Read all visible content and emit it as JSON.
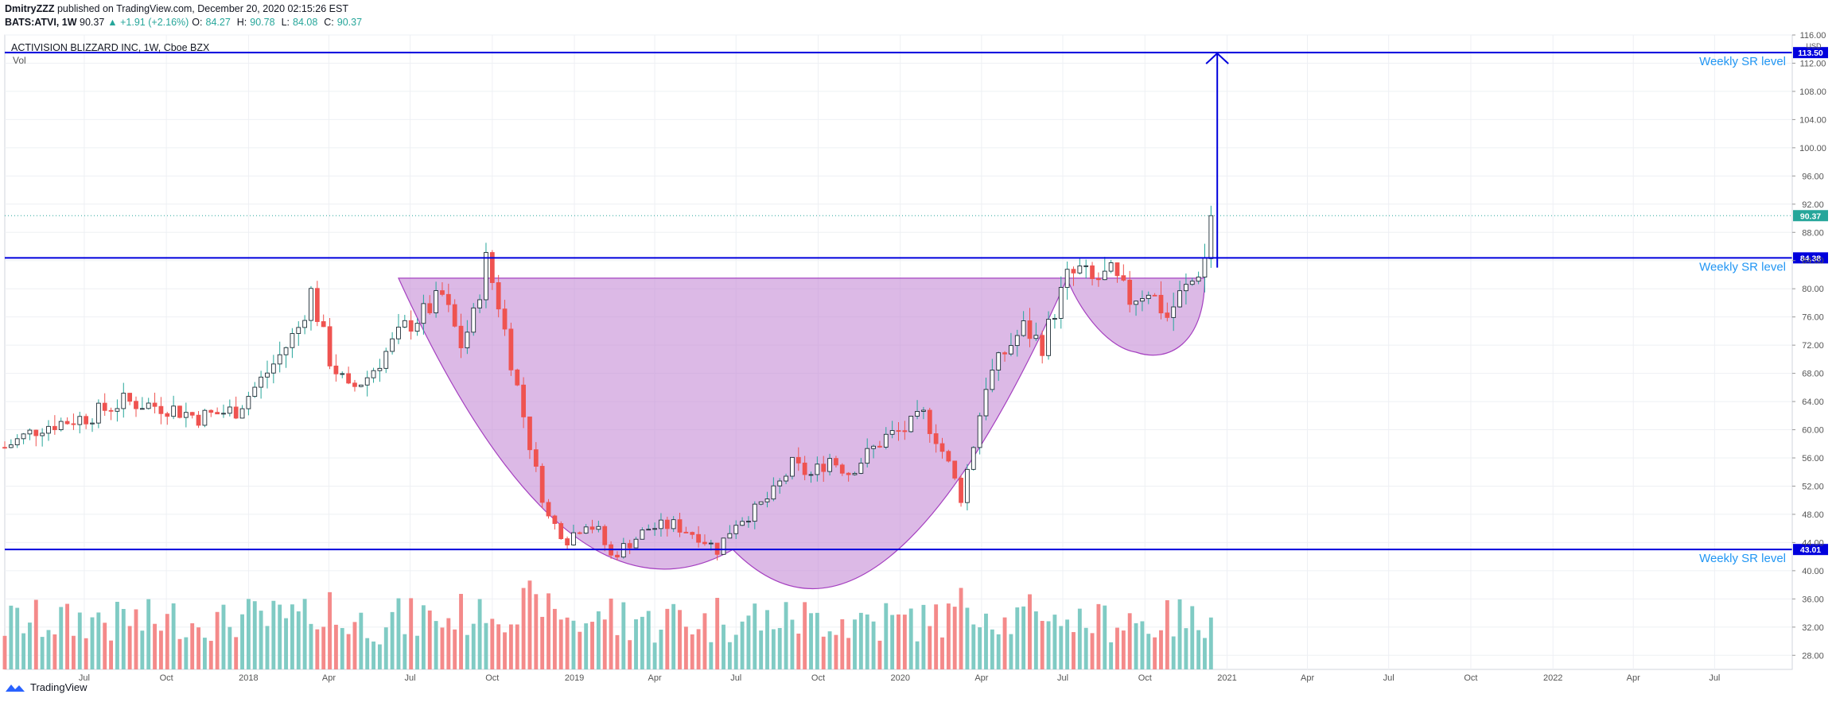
{
  "header": {
    "author": "DmitryZZZ",
    "published_text": "published on TradingView.com, December 20, 2020 02:15:26 EST",
    "symbol": "BATS:ATVI, 1W",
    "last": "90.37",
    "change": "▲ +1.91 (+2.16%)",
    "open_label": "O:",
    "open": "84.27",
    "high_label": "H:",
    "high": "90.78",
    "low_label": "L:",
    "low": "84.08",
    "close_label": "C:",
    "close": "90.37"
  },
  "pane": {
    "title": "ACTIVISION BLIZZARD INC, 1W, Cboe BZX",
    "vol_label": "Vol",
    "currency": "USD"
  },
  "footer": {
    "brand": "TradingView"
  },
  "colors": {
    "up": "#26a69a",
    "down": "#ef5350",
    "vol_up": "#80cbc4",
    "vol_down": "#f48a8a",
    "sr_line": "#0000dd",
    "pattern_fill": "#c48bd6",
    "pattern_stroke": "#a540c0",
    "label_blue": "#2196f3",
    "grid": "#eef0f4"
  },
  "chart_data": {
    "type": "candlestick",
    "title": "ACTIVISION BLIZZARD INC, 1W, Cboe BZX",
    "interval": "1W",
    "y_axis": {
      "min": 26,
      "max": 116,
      "ticks": [
        28,
        32,
        36,
        40,
        44,
        48,
        52,
        56,
        60,
        64,
        68,
        72,
        76,
        80,
        84,
        88,
        92,
        96,
        100,
        104,
        108,
        112,
        116
      ],
      "tick_format": "2dp",
      "unit": "USD"
    },
    "x_axis": {
      "start": "2017-04-03",
      "end": "2022-09-26",
      "ticks": [
        {
          "date": "2017-07-01",
          "label": "Jul"
        },
        {
          "date": "2017-10-01",
          "label": "Oct"
        },
        {
          "date": "2018-01-01",
          "label": "2018"
        },
        {
          "date": "2018-04-01",
          "label": "Apr"
        },
        {
          "date": "2018-07-01",
          "label": "Jul"
        },
        {
          "date": "2018-10-01",
          "label": "Oct"
        },
        {
          "date": "2019-01-01",
          "label": "2019"
        },
        {
          "date": "2019-04-01",
          "label": "Apr"
        },
        {
          "date": "2019-07-01",
          "label": "Jul"
        },
        {
          "date": "2019-10-01",
          "label": "Oct"
        },
        {
          "date": "2020-01-01",
          "label": "2020"
        },
        {
          "date": "2020-04-01",
          "label": "Apr"
        },
        {
          "date": "2020-07-01",
          "label": "Jul"
        },
        {
          "date": "2020-10-01",
          "label": "Oct"
        },
        {
          "date": "2021-01-01",
          "label": "2021"
        },
        {
          "date": "2021-04-01",
          "label": "Apr"
        },
        {
          "date": "2021-07-01",
          "label": "Jul"
        },
        {
          "date": "2021-10-01",
          "label": "Oct"
        },
        {
          "date": "2022-01-01",
          "label": "2022"
        },
        {
          "date": "2022-04-01",
          "label": "Apr"
        },
        {
          "date": "2022-07-01",
          "label": "Jul"
        }
      ]
    },
    "close_path": [
      [
        "2017-04-03",
        57.5
      ],
      [
        "2017-05-15",
        60.5
      ],
      [
        "2017-07-03",
        61.8
      ],
      [
        "2017-08-14",
        64.0
      ],
      [
        "2017-10-02",
        63.2
      ],
      [
        "2017-11-06",
        61.8
      ],
      [
        "2017-12-18",
        62.8
      ],
      [
        "2018-01-15",
        67.0
      ],
      [
        "2018-02-05",
        70.5
      ],
      [
        "2018-02-26",
        74.5
      ],
      [
        "2018-03-12",
        79.5
      ],
      [
        "2018-04-02",
        70.0
      ],
      [
        "2018-04-23",
        65.5
      ],
      [
        "2018-05-14",
        67.5
      ],
      [
        "2018-06-04",
        71.0
      ],
      [
        "2018-06-25",
        74.5
      ],
      [
        "2018-07-16",
        76.5
      ],
      [
        "2018-08-06",
        79.0
      ],
      [
        "2018-08-27",
        72.0
      ],
      [
        "2018-09-10",
        76.0
      ],
      [
        "2018-09-24",
        84.0
      ],
      [
        "2018-10-08",
        78.0
      ],
      [
        "2018-10-22",
        70.0
      ],
      [
        "2018-11-05",
        62.0
      ],
      [
        "2018-11-19",
        54.0
      ],
      [
        "2018-12-03",
        47.5
      ],
      [
        "2018-12-24",
        44.5
      ],
      [
        "2019-01-14",
        47.0
      ],
      [
        "2019-01-28",
        45.5
      ],
      [
        "2019-02-11",
        42.0
      ],
      [
        "2019-03-04",
        44.0
      ],
      [
        "2019-03-25",
        46.0
      ],
      [
        "2019-04-22",
        46.5
      ],
      [
        "2019-05-20",
        45.0
      ],
      [
        "2019-06-10",
        43.0
      ],
      [
        "2019-07-01",
        47.0
      ],
      [
        "2019-07-22",
        48.5
      ],
      [
        "2019-08-12",
        51.0
      ],
      [
        "2019-09-02",
        55.0
      ],
      [
        "2019-09-23",
        53.5
      ],
      [
        "2019-10-14",
        56.0
      ],
      [
        "2019-11-04",
        54.0
      ],
      [
        "2019-11-25",
        56.5
      ],
      [
        "2019-12-16",
        59.0
      ],
      [
        "2020-01-06",
        60.0
      ],
      [
        "2020-01-27",
        62.0
      ],
      [
        "2020-02-10",
        59.0
      ],
      [
        "2020-02-24",
        55.0
      ],
      [
        "2020-03-09",
        50.5
      ],
      [
        "2020-03-23",
        58.0
      ],
      [
        "2020-04-06",
        66.5
      ],
      [
        "2020-04-27",
        71.0
      ],
      [
        "2020-05-18",
        74.5
      ],
      [
        "2020-06-08",
        72.0
      ],
      [
        "2020-06-22",
        77.0
      ],
      [
        "2020-07-06",
        81.5
      ],
      [
        "2020-07-20",
        82.5
      ],
      [
        "2020-08-03",
        81.0
      ],
      [
        "2020-08-24",
        82.0
      ],
      [
        "2020-09-14",
        78.5
      ],
      [
        "2020-10-05",
        80.0
      ],
      [
        "2020-10-26",
        76.0
      ],
      [
        "2020-11-09",
        79.0
      ],
      [
        "2020-11-23",
        81.0
      ],
      [
        "2020-12-07",
        84.3
      ],
      [
        "2020-12-14",
        90.37
      ]
    ],
    "last_price": 90.37,
    "sr_levels": [
      {
        "value": 113.5,
        "label": "Weekly SR level",
        "price_label": "113.50"
      },
      {
        "value": 84.38,
        "label": "Weekly SR level",
        "price_label": "84.38"
      },
      {
        "value": 43.01,
        "label": "Weekly SR level",
        "price_label": "43.01"
      }
    ],
    "annotations": {
      "cup": {
        "rim": 81.5,
        "bottom": 43.0,
        "start": "2018-06-18",
        "end": "2020-07-06"
      },
      "handle": {
        "rim": 81.5,
        "bottom": 71.0,
        "start": "2020-07-06",
        "end": "2020-12-07"
      },
      "target_arrow": {
        "date": "2020-12-21",
        "from": 83.0,
        "to": 113.5
      }
    }
  }
}
